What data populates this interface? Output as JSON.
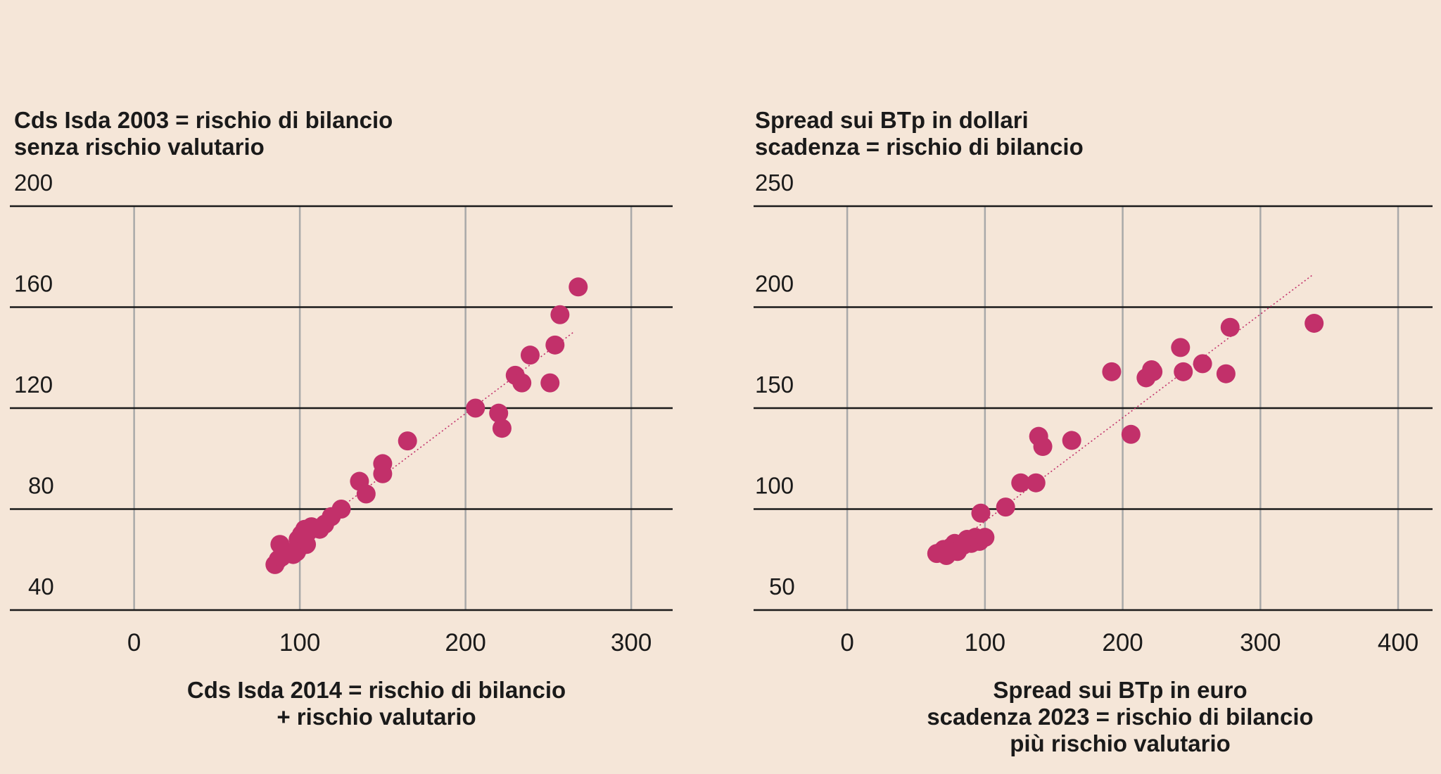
{
  "colors": {
    "background": "#f5e6d8",
    "point": "#c2306a",
    "trend": "#c2306a",
    "grid_h": "#1a1a1a",
    "grid_v": "#a9a9a9"
  },
  "chart_data": [
    {
      "type": "scatter",
      "title": [
        "Cds Isda 2003 = rischio di bilancio",
        "senza rischio valutario"
      ],
      "xlabel": [
        "Cds Isda 2014 = rischio di bilancio",
        "+ rischio valutario"
      ],
      "ylabel": "",
      "xlim": [
        -75,
        325
      ],
      "ylim": [
        40,
        200
      ],
      "x_ticks": [
        0,
        100,
        200,
        300
      ],
      "y_ticks": [
        40,
        80,
        120,
        160,
        200
      ],
      "grid": true,
      "trendline": {
        "x": [
          85,
          265
        ],
        "y": [
          61,
          150
        ]
      },
      "points": [
        {
          "x": 85,
          "y": 58
        },
        {
          "x": 87,
          "y": 60
        },
        {
          "x": 89,
          "y": 61
        },
        {
          "x": 88,
          "y": 66
        },
        {
          "x": 92,
          "y": 63
        },
        {
          "x": 96,
          "y": 62
        },
        {
          "x": 98,
          "y": 63
        },
        {
          "x": 100,
          "y": 65
        },
        {
          "x": 102,
          "y": 67
        },
        {
          "x": 104,
          "y": 66
        },
        {
          "x": 99,
          "y": 68
        },
        {
          "x": 101,
          "y": 70
        },
        {
          "x": 103,
          "y": 72
        },
        {
          "x": 105,
          "y": 71
        },
        {
          "x": 107,
          "y": 73
        },
        {
          "x": 112,
          "y": 72
        },
        {
          "x": 115,
          "y": 74
        },
        {
          "x": 119,
          "y": 77
        },
        {
          "x": 125,
          "y": 80
        },
        {
          "x": 136,
          "y": 91
        },
        {
          "x": 140,
          "y": 86
        },
        {
          "x": 150,
          "y": 94
        },
        {
          "x": 150,
          "y": 98
        },
        {
          "x": 165,
          "y": 107
        },
        {
          "x": 206,
          "y": 120
        },
        {
          "x": 220,
          "y": 118
        },
        {
          "x": 222,
          "y": 112
        },
        {
          "x": 230,
          "y": 133
        },
        {
          "x": 234,
          "y": 130
        },
        {
          "x": 239,
          "y": 141
        },
        {
          "x": 251,
          "y": 130
        },
        {
          "x": 254,
          "y": 145
        },
        {
          "x": 257,
          "y": 157
        },
        {
          "x": 268,
          "y": 168
        }
      ]
    },
    {
      "type": "scatter",
      "title": [
        "Spread sui BTp in dollari",
        "scadenza = rischio di bilancio"
      ],
      "xlabel": [
        "Spread sui BTp in euro",
        "scadenza 2023 = rischio di bilancio",
        "più rischio valutario"
      ],
      "ylabel": "",
      "xlim": [
        -68,
        425
      ],
      "ylim": [
        50,
        250
      ],
      "x_ticks": [
        0,
        100,
        200,
        300,
        400
      ],
      "y_ticks": [
        50,
        100,
        150,
        200,
        250
      ],
      "grid": true,
      "trendline": {
        "x": [
          67,
          338
        ],
        "y": [
          77,
          216
        ]
      },
      "points": [
        {
          "x": 65,
          "y": 78
        },
        {
          "x": 70,
          "y": 80
        },
        {
          "x": 72,
          "y": 77
        },
        {
          "x": 75,
          "y": 81
        },
        {
          "x": 78,
          "y": 83
        },
        {
          "x": 80,
          "y": 79
        },
        {
          "x": 84,
          "y": 82
        },
        {
          "x": 87,
          "y": 85
        },
        {
          "x": 90,
          "y": 83
        },
        {
          "x": 93,
          "y": 86
        },
        {
          "x": 96,
          "y": 84
        },
        {
          "x": 100,
          "y": 86
        },
        {
          "x": 97,
          "y": 98
        },
        {
          "x": 115,
          "y": 101
        },
        {
          "x": 126,
          "y": 113
        },
        {
          "x": 137,
          "y": 113
        },
        {
          "x": 139,
          "y": 136
        },
        {
          "x": 142,
          "y": 131
        },
        {
          "x": 163,
          "y": 134
        },
        {
          "x": 192,
          "y": 168
        },
        {
          "x": 206,
          "y": 137
        },
        {
          "x": 217,
          "y": 165
        },
        {
          "x": 221,
          "y": 169
        },
        {
          "x": 222,
          "y": 168
        },
        {
          "x": 242,
          "y": 180
        },
        {
          "x": 244,
          "y": 168
        },
        {
          "x": 258,
          "y": 172
        },
        {
          "x": 275,
          "y": 167
        },
        {
          "x": 278,
          "y": 190
        },
        {
          "x": 339,
          "y": 192
        }
      ]
    }
  ]
}
